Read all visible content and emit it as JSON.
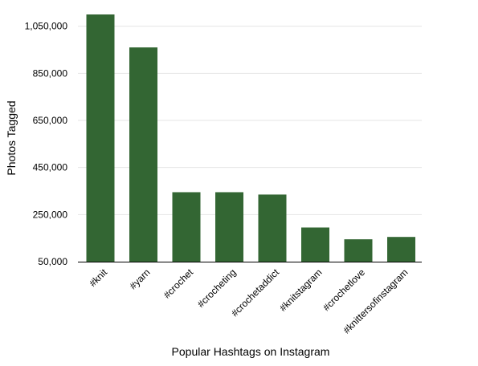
{
  "chart_data": {
    "type": "bar",
    "xlabel": "Popular Hashtags on Instagram",
    "ylabel": "Photos Tagged",
    "ylim": [
      50000,
      1100000
    ],
    "yticks": [
      50000,
      250000,
      450000,
      650000,
      850000,
      1050000
    ],
    "ytick_labels": [
      "50,000",
      "250,000",
      "450,000",
      "650,000",
      "850,000",
      "1,050,000"
    ],
    "grid": true,
    "categories": [
      "#knit",
      "#yarn",
      "#crochet",
      "#crocheting",
      "#crochetaddict",
      "#knitstagram",
      "#crochetlove",
      "#knittersofinstagram"
    ],
    "values": [
      1100000,
      960000,
      345000,
      345000,
      335000,
      195000,
      145000,
      155000
    ],
    "bar_color": "#336633"
  }
}
